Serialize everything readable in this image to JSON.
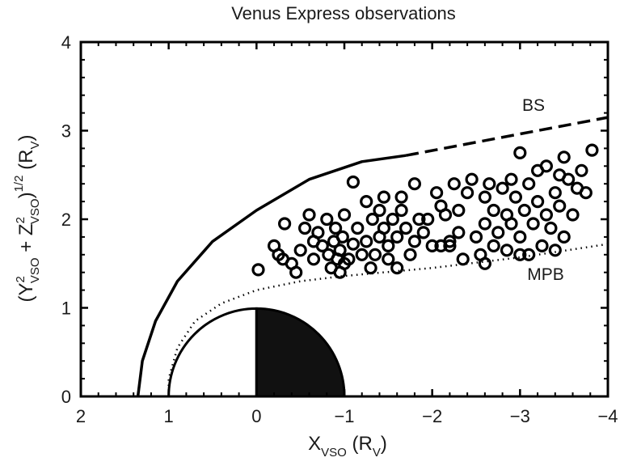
{
  "chart_data": {
    "type": "scatter",
    "title": "Venus Express observations",
    "xlim": [
      2,
      -4
    ],
    "ylim": [
      0,
      4
    ],
    "x_ticks": [
      2,
      1,
      0,
      -1,
      -2,
      -3,
      -4
    ],
    "y_ticks": [
      0,
      1,
      2,
      3,
      4
    ],
    "x_tick_labels": [
      "2",
      "1",
      "0",
      "−1",
      "−2",
      "−3",
      "−4"
    ],
    "y_tick_labels": [
      "0",
      "1",
      "2",
      "3",
      "4"
    ],
    "xlabel": {
      "main": "X",
      "sub": "VSO",
      "unit": " (R",
      "unit_sub": "V",
      "close": ")"
    },
    "ylabel": {
      "open": "(Y",
      "y_sup": "2",
      "y_sub": "VSO",
      "plus": " + Z",
      "z_sup": "2",
      "z_sub": "VSO",
      "close": ")",
      "pow": "1/2",
      "unit": " (R",
      "unit_sub": "V",
      "unit_close": ")"
    },
    "annotations": {
      "bs": "BS",
      "mpb": "MPB"
    },
    "grid": false,
    "planet": {
      "radius": 1,
      "night_side_color": "#111111",
      "day_side_color": "#ffffff"
    },
    "bow_shock": {
      "solid": [
        [
          1.35,
          0.0
        ],
        [
          1.3,
          0.4
        ],
        [
          1.15,
          0.85
        ],
        [
          0.9,
          1.3
        ],
        [
          0.5,
          1.75
        ],
        [
          0.0,
          2.1
        ],
        [
          -0.6,
          2.45
        ],
        [
          -1.2,
          2.65
        ],
        [
          -1.7,
          2.72
        ]
      ],
      "dashed": [
        [
          -1.7,
          2.72
        ],
        [
          -4.0,
          3.15
        ]
      ]
    },
    "mpb": [
      [
        1.0,
        0.0
      ],
      [
        1.0,
        0.2
      ],
      [
        0.9,
        0.55
      ],
      [
        0.7,
        0.85
      ],
      [
        0.4,
        1.05
      ],
      [
        0.0,
        1.2
      ],
      [
        -0.5,
        1.3
      ],
      [
        -1.0,
        1.36
      ],
      [
        -2.0,
        1.45
      ],
      [
        -3.0,
        1.57
      ],
      [
        -4.0,
        1.72
      ]
    ],
    "series": [
      {
        "marker": "open-circle",
        "points": [
          [
            -0.02,
            1.43
          ],
          [
            -0.2,
            1.7
          ],
          [
            -0.25,
            1.6
          ],
          [
            -0.3,
            1.55
          ],
          [
            -0.32,
            1.95
          ],
          [
            -0.4,
            1.5
          ],
          [
            -0.45,
            1.4
          ],
          [
            -0.5,
            1.65
          ],
          [
            -0.55,
            1.9
          ],
          [
            -0.6,
            2.05
          ],
          [
            -0.65,
            1.75
          ],
          [
            -0.65,
            1.55
          ],
          [
            -0.7,
            1.85
          ],
          [
            -0.75,
            1.7
          ],
          [
            -0.8,
            2.0
          ],
          [
            -0.82,
            1.6
          ],
          [
            -0.85,
            1.45
          ],
          [
            -0.88,
            1.75
          ],
          [
            -0.9,
            1.9
          ],
          [
            -0.92,
            1.55
          ],
          [
            -0.95,
            1.4
          ],
          [
            -0.95,
            1.65
          ],
          [
            -0.98,
            1.8
          ],
          [
            -1.0,
            2.05
          ],
          [
            -1.05,
            1.55
          ],
          [
            -1.1,
            1.72
          ],
          [
            -1.15,
            1.9
          ],
          [
            -1.1,
            2.42
          ],
          [
            -1.2,
            1.6
          ],
          [
            -1.25,
            1.75
          ],
          [
            -1.25,
            2.2
          ],
          [
            -1.3,
            1.45
          ],
          [
            -1.32,
            2.0
          ],
          [
            -1.35,
            1.6
          ],
          [
            -1.4,
            1.8
          ],
          [
            -1.45,
            1.9
          ],
          [
            -1.45,
            2.25
          ],
          [
            -1.5,
            1.55
          ],
          [
            -1.5,
            1.7
          ],
          [
            -1.55,
            2.0
          ],
          [
            -1.6,
            1.8
          ],
          [
            -1.6,
            1.45
          ],
          [
            -1.65,
            2.1
          ],
          [
            -1.65,
            2.25
          ],
          [
            -1.7,
            1.9
          ],
          [
            -1.75,
            1.6
          ],
          [
            -1.8,
            1.75
          ],
          [
            -1.85,
            2.0
          ],
          [
            -1.9,
            1.85
          ],
          [
            -1.95,
            2.0
          ],
          [
            -2.0,
            1.7
          ],
          [
            -2.05,
            2.3
          ],
          [
            -2.1,
            1.7
          ],
          [
            -2.1,
            2.15
          ],
          [
            -2.15,
            2.05
          ],
          [
            -2.2,
            1.75
          ],
          [
            -2.25,
            2.4
          ],
          [
            -2.3,
            2.1
          ],
          [
            -2.3,
            1.85
          ],
          [
            -2.35,
            1.55
          ],
          [
            -2.4,
            2.3
          ],
          [
            -2.45,
            2.45
          ],
          [
            -2.5,
            1.8
          ],
          [
            -2.55,
            1.6
          ],
          [
            -2.6,
            1.95
          ],
          [
            -2.6,
            2.25
          ],
          [
            -2.65,
            2.4
          ],
          [
            -2.7,
            1.7
          ],
          [
            -2.7,
            2.1
          ],
          [
            -2.75,
            1.85
          ],
          [
            -2.8,
            2.35
          ],
          [
            -2.85,
            2.05
          ],
          [
            -2.85,
            1.65
          ],
          [
            -2.9,
            1.95
          ],
          [
            -2.9,
            2.45
          ],
          [
            -2.95,
            2.25
          ],
          [
            -3.0,
            2.75
          ],
          [
            -3.0,
            1.8
          ],
          [
            -3.05,
            2.1
          ],
          [
            -3.1,
            1.6
          ],
          [
            -3.1,
            2.4
          ],
          [
            -3.15,
            1.95
          ],
          [
            -3.2,
            2.55
          ],
          [
            -3.2,
            2.2
          ],
          [
            -3.25,
            1.7
          ],
          [
            -3.3,
            2.05
          ],
          [
            -3.3,
            2.6
          ],
          [
            -3.35,
            1.9
          ],
          [
            -3.4,
            2.3
          ],
          [
            -3.45,
            2.5
          ],
          [
            -3.45,
            2.15
          ],
          [
            -3.5,
            1.8
          ],
          [
            -3.5,
            2.7
          ],
          [
            -3.55,
            2.45
          ],
          [
            -3.6,
            2.05
          ],
          [
            -3.65,
            2.35
          ],
          [
            -3.7,
            2.55
          ],
          [
            -3.75,
            2.3
          ],
          [
            -3.82,
            2.78
          ],
          [
            -3.4,
            1.65
          ],
          [
            -3.0,
            1.6
          ],
          [
            -2.6,
            1.5
          ],
          [
            -2.2,
            1.7
          ],
          [
            -1.8,
            2.4
          ],
          [
            -1.4,
            2.1
          ],
          [
            -1.0,
            1.5
          ]
        ]
      }
    ]
  }
}
